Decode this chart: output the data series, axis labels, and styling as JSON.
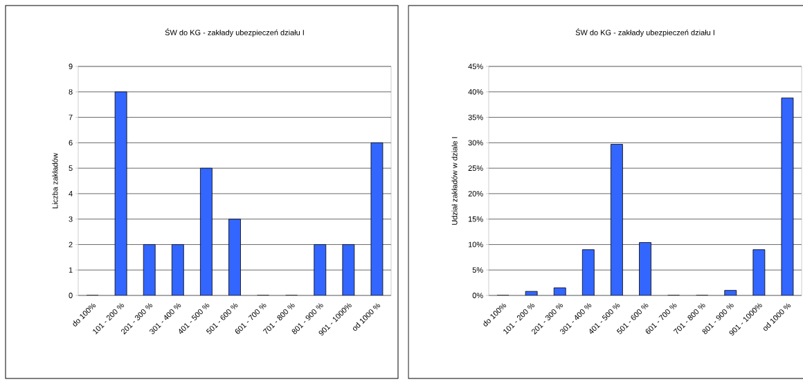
{
  "chart_data": [
    {
      "type": "bar",
      "title": "ŚW do KG - zakłady ubezpieczeń działu I",
      "ylabel": "Liczba zakładów",
      "categories": [
        "do 100%",
        "101 - 200 %",
        "201 - 300 %",
        "301 - 400 %",
        "401 - 500 %",
        "501 - 600 %",
        "601 - 700 %",
        "701 - 800 %",
        "801 - 900 %",
        "901 - 1000%",
        "od 1000 %"
      ],
      "values": [
        0,
        8,
        2,
        2,
        5,
        3,
        0,
        0,
        2,
        2,
        6
      ],
      "color": "#3366ff",
      "ylim": [
        0,
        9
      ],
      "yticks": [
        0,
        1,
        2,
        3,
        4,
        5,
        6,
        7,
        8,
        9
      ],
      "grid": "y"
    },
    {
      "type": "bar",
      "title": "ŚW do KG - zakłady ubezpieczeń działu I",
      "ylabel": "Udział zakładów w dziale I",
      "categories": [
        "do 100%",
        "101 - 200 %",
        "201 - 300 %",
        "301 - 400 %",
        "401 - 500 %",
        "501 - 600 %",
        "601 - 700 %",
        "701 - 800 %",
        "801 - 900 %",
        "901 - 1000%",
        "od 1000 %"
      ],
      "values": [
        0,
        0.8,
        1.5,
        9.0,
        29.7,
        10.4,
        0,
        0,
        1.0,
        9.0,
        38.8
      ],
      "color": "#3366ff",
      "ylim": [
        0,
        45
      ],
      "yticks": [
        {
          "value": 0,
          "label": "0%"
        },
        {
          "value": 5,
          "label": "5%"
        },
        {
          "value": 10,
          "label": "10%"
        },
        {
          "value": 15,
          "label": "15%"
        },
        {
          "value": 20,
          "label": "20%"
        },
        {
          "value": 25,
          "label": "25%"
        },
        {
          "value": 30,
          "label": "30%"
        },
        {
          "value": 35,
          "label": "35%"
        },
        {
          "value": 40,
          "label": "40%"
        },
        {
          "value": 45,
          "label": "45%"
        }
      ],
      "grid": "y"
    }
  ]
}
